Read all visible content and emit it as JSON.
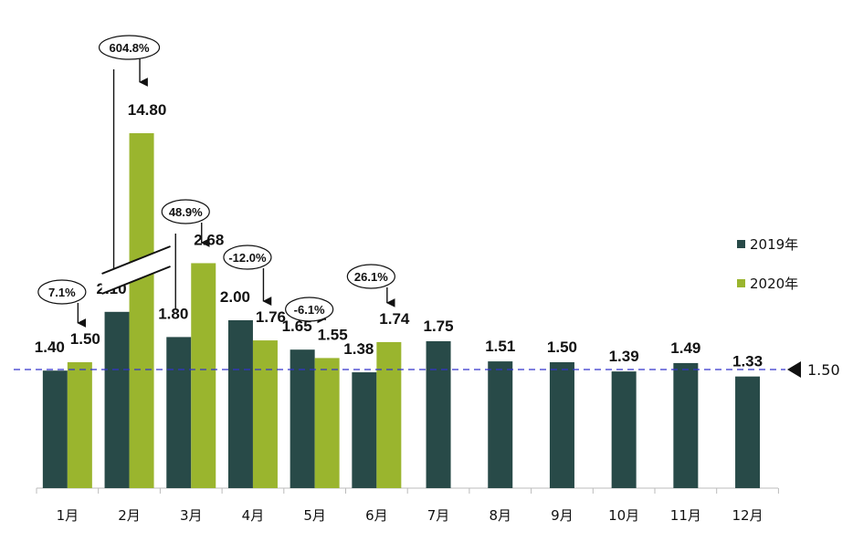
{
  "chart_data": {
    "type": "bar",
    "title": "",
    "xlabel": "",
    "ylabel": "",
    "categories": [
      "1月",
      "2月",
      "3月",
      "4月",
      "5月",
      "6月",
      "7月",
      "8月",
      "9月",
      "10月",
      "11月",
      "12月"
    ],
    "series": [
      {
        "name": "2019年",
        "color": "#284a48",
        "values": [
          1.4,
          2.1,
          1.8,
          2.0,
          1.65,
          1.38,
          1.75,
          1.51,
          1.5,
          1.39,
          1.49,
          1.33
        ],
        "labels": [
          "1.40",
          "2.10",
          "1.80",
          "2.00",
          "1.65",
          "1.38",
          "1.75",
          "1.51",
          "1.50",
          "1.39",
          "1.49",
          "1.33"
        ]
      },
      {
        "name": "2020年",
        "color": "#9ab52e",
        "values": [
          1.5,
          14.8,
          2.68,
          1.76,
          1.55,
          1.74,
          null,
          null,
          null,
          null,
          null,
          null
        ],
        "labels": [
          "1.50",
          "14.80",
          "2.68",
          "1.76",
          "1.55",
          "1.74",
          "",
          "",
          "",
          "",
          "",
          ""
        ]
      }
    ],
    "changes": [
      "7.1%",
      "604.8%",
      "48.9%",
      "-12.0%",
      "-6.1%",
      "26.1%"
    ],
    "reference_line": {
      "value": 1.5,
      "label": "1.50",
      "color": "#3333cc",
      "style": "dashed"
    },
    "axis_break": true,
    "legend_position": "right",
    "grid": false
  }
}
